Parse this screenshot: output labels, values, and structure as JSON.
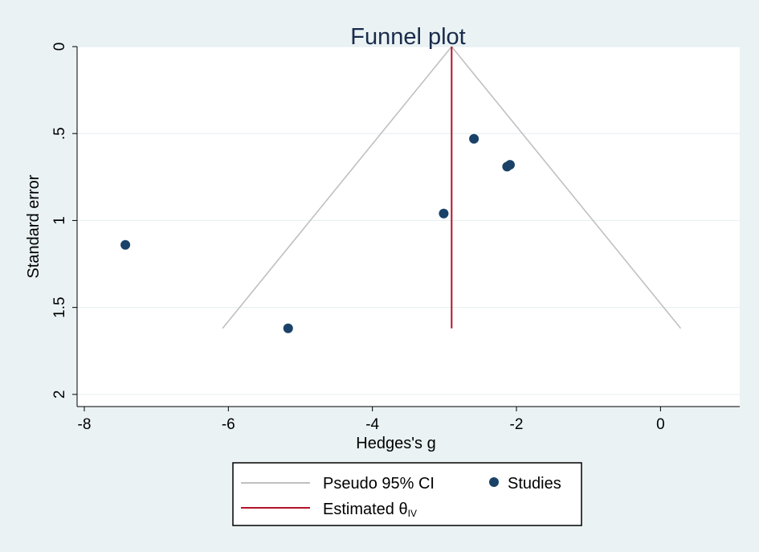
{
  "chart_data": {
    "type": "scatter",
    "title": "Funnel plot",
    "xlabel": "Hedges's g",
    "ylabel": "Standard error",
    "xlim": [
      -8.1,
      1.1
    ],
    "ylim": [
      0,
      2.07
    ],
    "y_reversed": true,
    "x_ticks": [
      -8,
      -6,
      -4,
      -2,
      0
    ],
    "x_tick_labels": [
      "-8",
      "-6",
      "-4",
      "-2",
      "0"
    ],
    "y_ticks": [
      0,
      0.5,
      1,
      1.5,
      2
    ],
    "y_tick_labels": [
      "0",
      ".5",
      "1",
      "1.5",
      "2"
    ],
    "grid": "horizontal",
    "estimate": -2.9,
    "max_se": 1.62,
    "ci_lines": [
      {
        "x": [
          -2.9,
          -6.08
        ],
        "y": [
          0,
          1.62
        ]
      },
      {
        "x": [
          -2.9,
          0.28
        ],
        "y": [
          0,
          1.62
        ]
      }
    ],
    "studies": {
      "x": [
        -7.43,
        -5.17,
        -3.01,
        -2.59,
        -2.13,
        -2.09
      ],
      "y": [
        1.14,
        1.62,
        0.96,
        0.53,
        0.69,
        0.68
      ]
    },
    "legend": {
      "position": "bottom",
      "entries": [
        {
          "label": "Pseudo 95% CI",
          "type": "line",
          "color": "#c0c0c0"
        },
        {
          "label": "Studies",
          "type": "marker",
          "color": "#1a4268"
        },
        {
          "label": "Estimated θ",
          "subscript": "IV",
          "type": "line",
          "color": "#b0142a"
        }
      ]
    },
    "colors": {
      "background": "#eaf2f3",
      "plot_area": "#ffffff",
      "grid": "#e6eef0",
      "ci": "#c0c0c0",
      "estimate": "#b0142a",
      "marker": "#1a4268"
    }
  }
}
